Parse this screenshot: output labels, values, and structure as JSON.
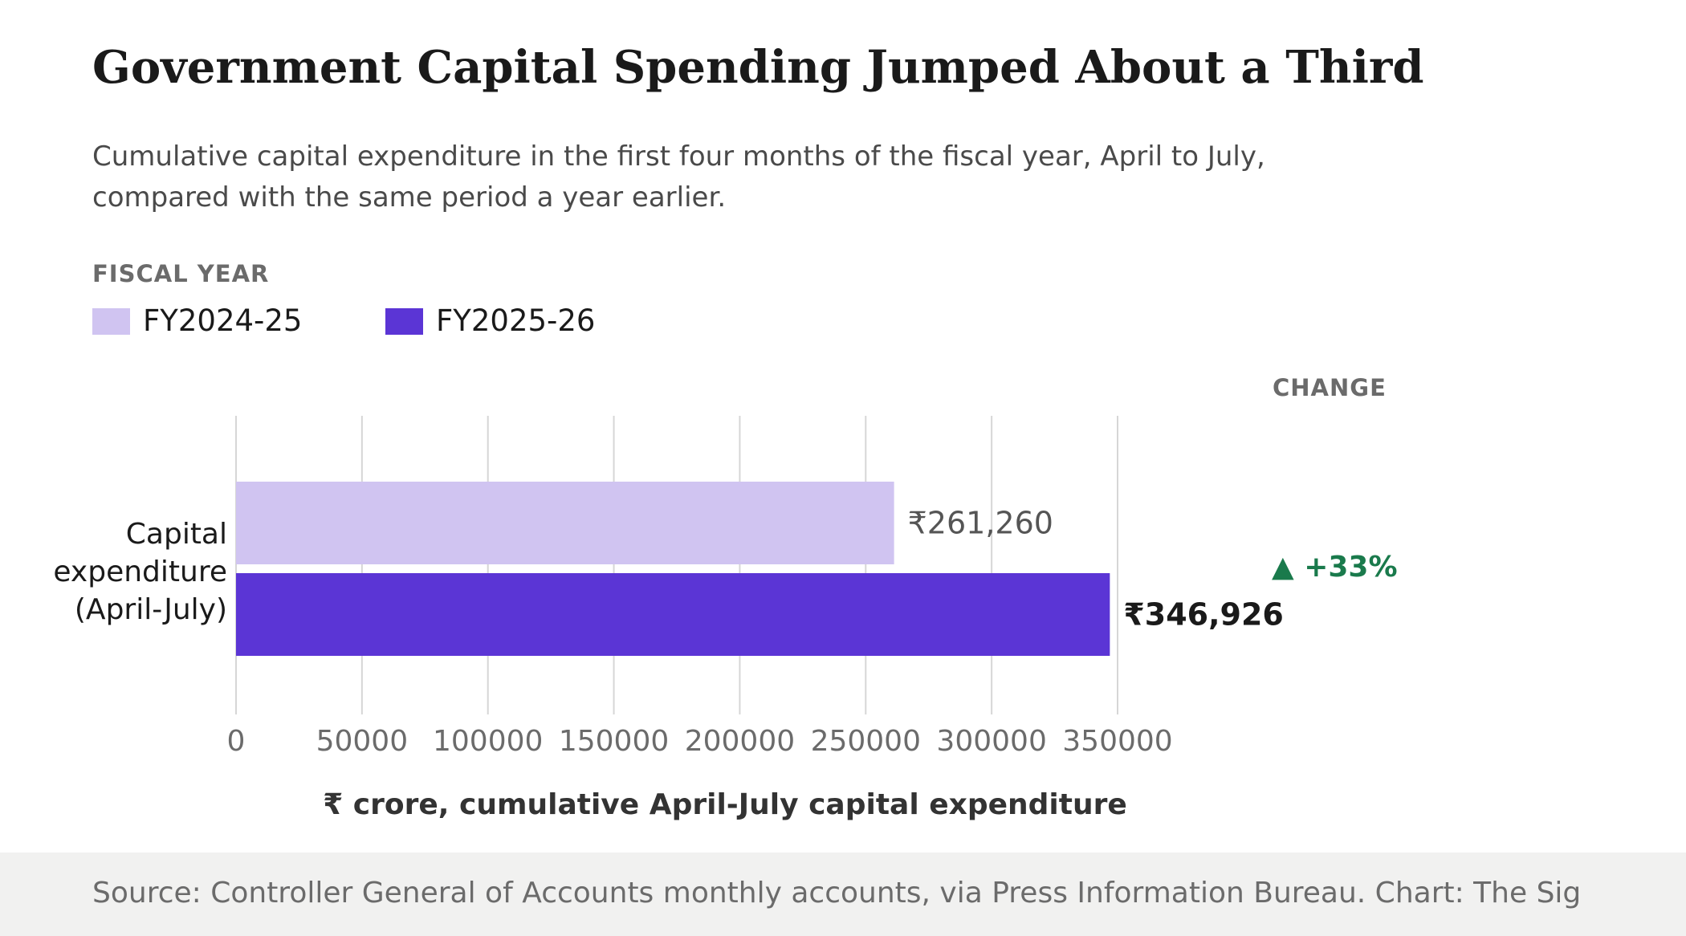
{
  "header": {
    "title": "Government Capital Spending Jumped About a Third",
    "subtitle": "Cumulative capital expenditure in the first four months of the fiscal year, April to July, compared with the same period a year earlier."
  },
  "legend": {
    "title": "FISCAL YEAR"
  },
  "change_header": "CHANGE",
  "source": "Source: Controller General of Accounts monthly accounts, via Press Information Bureau. Chart: The Sig",
  "chart_data": {
    "type": "bar",
    "orientation": "horizontal",
    "categories": [
      "Capital expenditure (April-July)"
    ],
    "category_label_lines": [
      "Capital",
      "expenditure",
      "(April-July)"
    ],
    "series": [
      {
        "name": "FY2024-25",
        "values": [
          261260
        ],
        "color": "#d0c4f1",
        "data_labels": [
          "₹261,260"
        ]
      },
      {
        "name": "FY2025-26",
        "values": [
          346926
        ],
        "color": "#5b35d5",
        "data_labels": [
          "₹346,926"
        ]
      }
    ],
    "xlim": [
      0,
      350000
    ],
    "x_ticks": [
      0,
      50000,
      100000,
      150000,
      200000,
      250000,
      300000,
      350000
    ],
    "x_tick_labels": [
      "0",
      "50000",
      "100000",
      "150000",
      "200000",
      "250000",
      "300000",
      "350000"
    ],
    "xlabel": "₹ crore, cumulative April-July capital expenditure",
    "grid": true,
    "legend_position": "top-left",
    "change_labels": [
      "▲ +33%"
    ],
    "change_color": "#1a7a4c",
    "grid_color": "#d6d6d6"
  }
}
